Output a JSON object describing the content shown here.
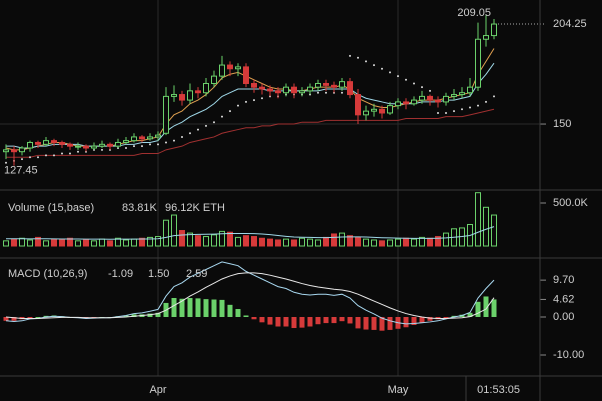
{
  "chart_data": [
    {
      "type": "candlestick",
      "up_color": "#6bd16b",
      "down_color": "#d63a3a",
      "categories": [
        null,
        null,
        null,
        null,
        null,
        null,
        null,
        null,
        null,
        null,
        null,
        null,
        null,
        null,
        null,
        null,
        null,
        null,
        null,
        "Apr",
        null,
        null,
        null,
        null,
        null,
        null,
        null,
        null,
        null,
        null,
        null,
        null,
        null,
        null,
        null,
        null,
        null,
        null,
        null,
        null,
        null,
        null,
        null,
        null,
        null,
        null,
        null,
        null,
        null,
        "May",
        null,
        null,
        null,
        null,
        null,
        null,
        null,
        null,
        null,
        null,
        null,
        null
      ],
      "open": [
        135,
        136,
        135,
        137,
        140,
        139,
        141,
        140,
        139,
        138,
        138,
        137,
        138,
        139,
        138,
        140,
        141,
        143,
        142,
        143,
        145,
        165,
        166,
        163,
        168,
        167,
        172,
        176,
        182,
        180,
        181,
        172,
        170,
        169,
        168,
        167,
        170,
        167,
        168,
        170,
        172,
        171,
        170,
        173,
        166,
        155,
        157,
        158,
        156,
        160,
        162,
        161,
        163,
        165,
        163,
        162,
        165,
        166,
        167,
        170,
        196,
        198
      ],
      "high": [
        139,
        138,
        138,
        141,
        141,
        143,
        142,
        141,
        140,
        140,
        139,
        140,
        141,
        140,
        142,
        143,
        145,
        144,
        145,
        146,
        170,
        171,
        168,
        172,
        170,
        175,
        179,
        187,
        184,
        183,
        183,
        174,
        172,
        171,
        170,
        172,
        172,
        170,
        172,
        174,
        174,
        173,
        175,
        175,
        169,
        160,
        161,
        160,
        162,
        164,
        164,
        165,
        168,
        166,
        165,
        167,
        169,
        170,
        175,
        205,
        209.05,
        207
      ],
      "low": [
        131,
        127.45,
        133,
        135,
        137,
        138,
        138,
        137,
        136,
        136,
        135,
        136,
        137,
        136,
        137,
        139,
        140,
        140,
        141,
        141,
        144,
        162,
        160,
        161,
        164,
        165,
        170,
        174,
        176,
        176,
        170,
        167,
        166,
        165,
        164,
        165,
        164,
        165,
        166,
        168,
        168,
        167,
        168,
        164,
        150,
        152,
        154,
        153,
        155,
        158,
        158,
        160,
        161,
        160,
        159,
        160,
        163,
        164,
        165,
        168,
        192,
        196
      ],
      "close": [
        136,
        135,
        137,
        140,
        139,
        141,
        140,
        139,
        138,
        138,
        137,
        138,
        139,
        138,
        140,
        141,
        143,
        142,
        143,
        144,
        165,
        166,
        163,
        168,
        167,
        172,
        176,
        182,
        180,
        181,
        172,
        170,
        169,
        168,
        167,
        170,
        167,
        168,
        170,
        172,
        171,
        170,
        173,
        166,
        155,
        157,
        158,
        156,
        160,
        162,
        161,
        163,
        165,
        163,
        162,
        165,
        166,
        167,
        170,
        196,
        198,
        204.25
      ],
      "series": [
        {
          "color": "#e0a050",
          "values": [
            137,
            136,
            136,
            137,
            138,
            139,
            140,
            140,
            139,
            138,
            138,
            138,
            138,
            138,
            139,
            140,
            141,
            141,
            142,
            143,
            150,
            155,
            157,
            161,
            163,
            166,
            170,
            175,
            177,
            178,
            176,
            174,
            172,
            170,
            169,
            169,
            168,
            168,
            169,
            170,
            170,
            170,
            171,
            169,
            164,
            162,
            160,
            159,
            159,
            160,
            161,
            162,
            163,
            163,
            163,
            164,
            165,
            166,
            167,
            177,
            184,
            191
          ]
        },
        {
          "color": "#9fd8e8",
          "values": [
            138,
            138,
            137,
            137,
            138,
            138,
            139,
            139,
            139,
            139,
            138,
            138,
            138,
            138,
            138,
            139,
            139,
            140,
            140,
            141,
            146,
            149,
            151,
            154,
            156,
            158,
            161,
            165,
            167,
            169,
            169,
            169,
            169,
            168,
            168,
            168,
            168,
            168,
            168,
            168,
            169,
            169,
            169,
            169,
            166,
            164,
            163,
            162,
            161,
            161,
            161,
            161,
            162,
            162,
            162,
            163,
            163,
            164,
            165,
            172,
            177,
            183
          ]
        },
        {
          "color": "#a03030",
          "values": [
            132,
            132,
            132,
            132,
            133,
            133,
            133,
            133,
            133,
            133,
            133,
            133,
            133,
            133,
            133,
            133,
            133,
            134,
            134,
            134,
            136,
            137,
            138,
            140,
            141,
            142,
            143,
            145,
            146,
            147,
            148,
            148,
            149,
            149,
            150,
            150,
            150,
            151,
            151,
            151,
            152,
            152,
            152,
            152,
            152,
            152,
            152,
            152,
            152,
            152,
            153,
            153,
            153,
            153,
            153,
            154,
            154,
            154,
            155,
            156,
            157,
            158
          ]
        },
        {
          "color": "#dddddd",
          "style": "dots",
          "values": [
            129,
            130,
            131,
            132,
            132,
            133,
            133,
            134,
            134,
            135,
            135,
            136,
            136,
            136,
            137,
            137,
            138,
            138,
            139,
            139,
            140,
            141,
            143,
            145,
            147,
            149,
            151,
            154,
            157,
            160,
            162,
            163,
            164,
            165,
            165,
            166,
            166,
            166,
            166,
            167,
            167,
            167,
            167,
            187,
            186,
            184,
            182,
            180,
            178,
            176,
            174,
            172,
            170,
            168,
            156,
            156,
            157,
            158,
            159,
            160,
            162,
            165
          ]
        }
      ],
      "ylim": [
        115.3,
        217.3
      ],
      "yticks": [
        150
      ],
      "last_price": 204.25,
      "grid": true
    },
    {
      "type": "volume",
      "title": "Volume (15,base)",
      "readout": "83.81K",
      "readout_color": "#6bd16b",
      "readout2": "96.12K ETH",
      "values": [
        60000,
        80000,
        90000,
        70000,
        100000,
        60000,
        80000,
        70000,
        90000,
        60000,
        70000,
        60000,
        80000,
        60000,
        90000,
        70000,
        80000,
        90000,
        100000,
        110000,
        300000,
        360000,
        180000,
        150000,
        120000,
        110000,
        130000,
        170000,
        160000,
        100000,
        120000,
        110000,
        90000,
        80000,
        70000,
        80000,
        70000,
        90000,
        80000,
        70000,
        100000,
        140000,
        150000,
        120000,
        100000,
        80000,
        70000,
        60000,
        70000,
        80000,
        90000,
        80000,
        100000,
        90000,
        110000,
        150000,
        200000,
        210000,
        250000,
        620000,
        450000,
        360000
      ],
      "series": [
        {
          "color": "#9fd8e8",
          "values": [
            85000,
            84000,
            84000,
            83000,
            84000,
            84000,
            83000,
            82000,
            82000,
            81000,
            80000,
            80000,
            80000,
            79000,
            80000,
            80000,
            80000,
            81000,
            82000,
            84000,
            100000,
            120000,
            128000,
            133000,
            135000,
            136000,
            138000,
            142000,
            146000,
            146000,
            146000,
            144000,
            140000,
            132000,
            122000,
            112000,
            104000,
            102000,
            100000,
            98000,
            98000,
            100000,
            104000,
            106000,
            106000,
            104000,
            100000,
            96000,
            94000,
            92000,
            90000,
            88000,
            88000,
            88000,
            90000,
            94000,
            102000,
            110000,
            122000,
            160000,
            195000,
            225000
          ]
        }
      ],
      "ylim": [
        0,
        628000
      ],
      "yticks": [
        {
          "value": 500000,
          "label": "500.0K"
        }
      ]
    },
    {
      "type": "macd",
      "title": "MACD (10,26,9)",
      "readout": "-1.09",
      "readout_color": "#d63a3a",
      "readout2": "1.50",
      "readout3": "2.59",
      "values": [
        -1,
        -1,
        -0.6,
        -0.1,
        0,
        0.3,
        0.4,
        0.2,
        0,
        -0.1,
        -0.2,
        -0.1,
        0,
        0,
        0.2,
        0.4,
        0.7,
        0.7,
        0.9,
        1.1,
        3.7,
        5,
        4.8,
        5,
        4.9,
        4.7,
        4.6,
        4.5,
        3.2,
        2.1,
        0.4,
        -0.6,
        -1.4,
        -2,
        -2.5,
        -2.5,
        -2.9,
        -2.8,
        -2.5,
        -1.9,
        -1.6,
        -1.6,
        -1.1,
        -1.7,
        -3,
        -3.3,
        -3.4,
        -3.6,
        -3.4,
        -3.1,
        -2.7,
        -2.1,
        -1.5,
        -1,
        -0.6,
        -0.1,
        0.3,
        0.6,
        1.1,
        4,
        5.4,
        4.62
      ],
      "series": [
        {
          "color": "#a8d8f0",
          "values": [
            -1,
            -1.2,
            -1,
            -0.5,
            -0.4,
            0,
            0.2,
            0.1,
            -0.1,
            -0.2,
            -0.4,
            -0.3,
            -0.2,
            -0.2,
            0.1,
            0.4,
            0.9,
            1.1,
            1.5,
            2,
            5.5,
            8,
            9,
            10.5,
            11.5,
            12.5,
            13.5,
            14.5,
            14,
            13.5,
            12,
            11,
            10,
            9,
            8,
            7.5,
            6.5,
            6,
            5.8,
            6,
            6,
            5.7,
            6,
            5,
            3,
            1.8,
            0.8,
            -0.3,
            -1,
            -1.5,
            -1.8,
            -1.7,
            -1.5,
            -1.3,
            -1,
            -0.5,
            0,
            0.4,
            1.2,
            5,
            7.5,
            9.7
          ]
        },
        {
          "color": "#e8e8e8",
          "values": [
            0,
            -0.2,
            -0.4,
            -0.4,
            -0.4,
            -0.3,
            -0.2,
            -0.1,
            -0.1,
            -0.1,
            -0.2,
            -0.2,
            -0.2,
            -0.2,
            -0.1,
            0,
            0.2,
            0.4,
            0.6,
            0.9,
            1.8,
            3,
            4.2,
            5.5,
            6.6,
            7.8,
            8.9,
            10,
            10.8,
            11.4,
            11.6,
            11.6,
            11.4,
            11,
            10.5,
            10,
            9.4,
            8.8,
            8.3,
            7.9,
            7.6,
            7.3,
            7.1,
            6.7,
            6,
            5.1,
            4.2,
            3.3,
            2.4,
            1.6,
            0.9,
            0.4,
            0,
            -0.3,
            -0.4,
            -0.4,
            -0.3,
            -0.2,
            0.1,
            1,
            2.1,
            5.08
          ]
        }
      ],
      "pos_color": "#6bd16b",
      "neg_color": "#d63a3a",
      "ylim": [
        -15.26,
        14.47
      ],
      "yticks": [
        {
          "value": 9.7,
          "label": "9.70"
        },
        {
          "value": 4.62,
          "label": "4.62"
        },
        {
          "value": 0,
          "label": "0.00"
        },
        {
          "value": -10,
          "label": "-10.00"
        }
      ]
    }
  ],
  "timer": "01:53:05"
}
